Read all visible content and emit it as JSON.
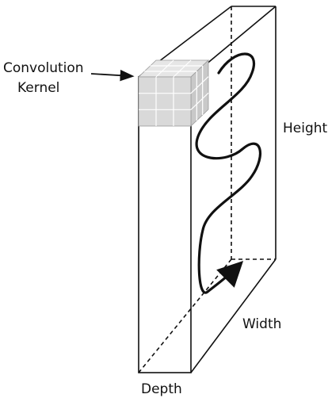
{
  "labels": {
    "kernel_line1": "Convolution",
    "kernel_line2": "Kernel",
    "height": "Height",
    "width": "Width",
    "depth": "Depth"
  },
  "colors": {
    "stroke": "#111111",
    "kernel_front": "#d9d9d9",
    "kernel_top": "#e6e6e6",
    "kernel_side": "#c9c9c9",
    "kernel_grid": "#ffffff"
  },
  "kernel": {
    "grid": 3
  }
}
